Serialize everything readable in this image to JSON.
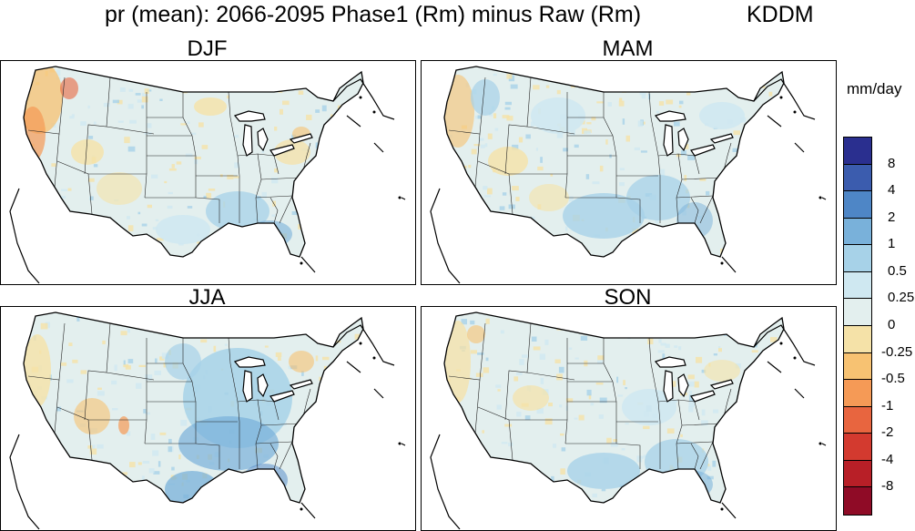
{
  "title": {
    "main": "pr (mean): 2066-2095 Phase1 (Rm) minus Raw (Rm)",
    "model": "KDDM"
  },
  "panels": [
    {
      "label": "DJF"
    },
    {
      "label": "MAM"
    },
    {
      "label": "JJA"
    },
    {
      "label": "SON"
    }
  ],
  "colorbar": {
    "units": "mm/day",
    "ticks": [
      "8",
      "4",
      "2",
      "1",
      "0.5",
      "0.25",
      "0",
      "-0.25",
      "-0.5",
      "-1",
      "-2",
      "-4",
      "-8"
    ],
    "colors": [
      "#2a2f8f",
      "#3b5cae",
      "#4e86c6",
      "#79b1da",
      "#a7d2e8",
      "#cfe8f1",
      "#e3efee",
      "#f5e2a8",
      "#f7c272",
      "#f59a56",
      "#e8653f",
      "#d33a2f",
      "#b81f27",
      "#8f0b26"
    ]
  }
}
